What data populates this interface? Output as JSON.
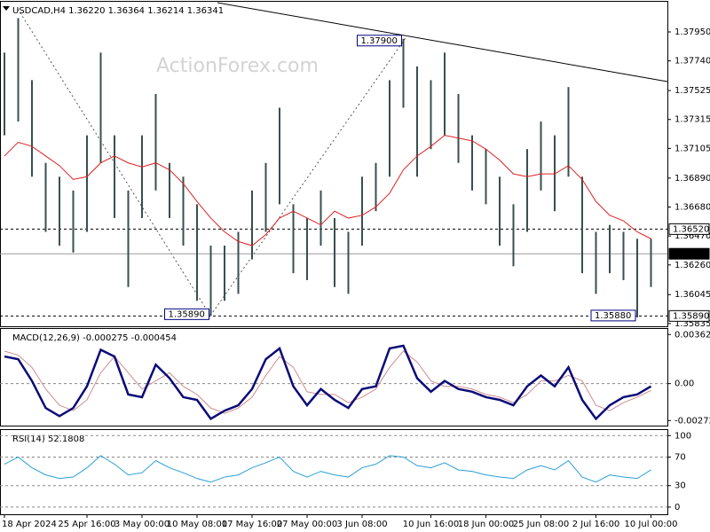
{
  "watermark": "ActionForex.com",
  "chart_data": [
    {
      "type": "ohlc",
      "title": "USDCAD,H4 1.36220 1.36364 1.36214 1.36341",
      "color": "#37504f",
      "categories": [
        "18 Apr 2024",
        null,
        null,
        null,
        null,
        null,
        "25 Apr 16:00",
        null,
        null,
        null,
        "3 May 00:00",
        null,
        null,
        null,
        "10 May 08:00",
        null,
        null,
        null,
        "17 May 16:00",
        null,
        null,
        null,
        "27 May 00:00",
        null,
        null,
        null,
        "3 Jun 08:00",
        null,
        null,
        null,
        null,
        "10 Jun 16:00",
        null,
        null,
        null,
        "18 Jun 00:00",
        null,
        null,
        null,
        "25 Jun 08:00",
        null,
        null,
        null,
        "2 Jul 16:00",
        null,
        null,
        null,
        "10 Jul 00:00"
      ],
      "high": [
        1.378,
        1.3805,
        1.376,
        1.37,
        1.369,
        1.368,
        1.372,
        1.378,
        1.372,
        1.368,
        1.372,
        1.375,
        1.37,
        1.369,
        1.367,
        1.364,
        1.364,
        1.365,
        1.368,
        1.37,
        1.374,
        1.367,
        1.366,
        1.368,
        1.366,
        1.365,
        1.369,
        1.37,
        1.376,
        1.379,
        1.377,
        1.376,
        1.378,
        1.375,
        1.372,
        1.371,
        1.369,
        1.367,
        1.371,
        1.373,
        1.372,
        1.3755,
        1.369,
        1.365,
        1.3655,
        1.365,
        1.3645,
        1.3645
      ],
      "low": [
        1.372,
        1.373,
        1.369,
        1.365,
        1.364,
        1.3635,
        1.365,
        1.37,
        1.366,
        1.361,
        1.366,
        1.368,
        1.366,
        1.364,
        1.36,
        1.3589,
        1.36,
        1.3605,
        1.363,
        1.365,
        1.367,
        1.362,
        1.3615,
        1.364,
        1.361,
        1.3605,
        1.364,
        1.3665,
        1.369,
        1.374,
        1.369,
        1.371,
        1.372,
        1.37,
        1.368,
        1.367,
        1.364,
        1.3625,
        1.365,
        1.368,
        1.3665,
        1.369,
        1.362,
        1.3605,
        1.362,
        1.3615,
        1.3588,
        1.361
      ],
      "ma": {
        "color": "#e02020",
        "values": [
          1.3705,
          1.3715,
          1.3712,
          1.3705,
          1.3698,
          1.3688,
          1.369,
          1.37,
          1.3705,
          1.37,
          1.3697,
          1.37,
          1.3695,
          1.3685,
          1.3672,
          1.366,
          1.365,
          1.3643,
          1.364,
          1.3648,
          1.366,
          1.3665,
          1.366,
          1.3655,
          1.3665,
          1.366,
          1.3662,
          1.3668,
          1.3678,
          1.3695,
          1.3705,
          1.3712,
          1.372,
          1.3718,
          1.3716,
          1.371,
          1.3702,
          1.3692,
          1.369,
          1.3692,
          1.3692,
          1.3698,
          1.3688,
          1.3672,
          1.3662,
          1.3658,
          1.365,
          1.3645
        ]
      },
      "ylim": [
        1.35815,
        1.38175
      ],
      "yticks": [
        {
          "value": 1.3795,
          "label": "1.37950"
        },
        {
          "value": 1.3774,
          "label": "1.37740"
        },
        {
          "value": 1.37525,
          "label": "1.37525"
        },
        {
          "value": 1.37315,
          "label": "1.37315"
        },
        {
          "value": 1.37105,
          "label": "1.37105"
        },
        {
          "value": 1.3689,
          "label": "1.36890"
        },
        {
          "value": 1.3668,
          "label": "1.36680"
        },
        {
          "value": 1.3647,
          "label": "1.36470"
        },
        {
          "value": 1.3626,
          "label": "1.36260"
        },
        {
          "value": 1.36045,
          "label": "1.36045"
        },
        {
          "value": 1.35835,
          "label": "1.35835"
        }
      ],
      "levels": [
        {
          "value": 1.3652,
          "label": "1.36520",
          "style": "dashed"
        },
        {
          "value": 1.36341,
          "label": "1.36341",
          "style": "solid"
        },
        {
          "value": 1.3589,
          "label": "1.35890",
          "style": "dashed"
        }
      ],
      "annotations": [
        {
          "value": 1.379,
          "label": "1.37900"
        },
        {
          "value": 1.3589,
          "label": "1.35890"
        },
        {
          "value": 1.3588,
          "label": "1.35880"
        }
      ]
    },
    {
      "type": "macd",
      "title": "MACD(12,26,9) -0.000275 -0.000454",
      "series": [
        {
          "color": "#0a0a78",
          "values": [
            0.002,
            0.0018,
            0.0002,
            -0.0018,
            -0.0024,
            -0.0018,
            -0.0002,
            0.0025,
            0.002,
            -0.0008,
            -0.001,
            0.0014,
            0.0004,
            -0.001,
            -0.0012,
            -0.0026,
            -0.002,
            -0.0016,
            -0.0004,
            0.0018,
            0.0026,
            -0.0002,
            -0.0016,
            -0.0004,
            -0.0012,
            -0.0018,
            -0.0004,
            -0.0002,
            0.0026,
            0.0028,
            0.0004,
            -0.0006,
            0.0002,
            -0.0004,
            -0.0006,
            -0.001,
            -0.0012,
            -0.0016,
            -0.0002,
            0.0006,
            -0.0002,
            0.0012,
            -0.0012,
            -0.0026,
            -0.0016,
            -0.001,
            -0.0008,
            -0.0002
          ]
        },
        {
          "color": "#d08c8c",
          "values": [
            0.0024,
            0.0021,
            0.0012,
            -0.0004,
            -0.0016,
            -0.002,
            -0.0012,
            0.0008,
            0.002,
            0.0008,
            -0.0004,
            0.0002,
            0.0008,
            -0.0002,
            -0.0008,
            -0.0018,
            -0.0022,
            -0.0018,
            -0.001,
            0.0006,
            0.002,
            0.0012,
            -0.0006,
            -0.0008,
            -0.0008,
            -0.0014,
            -0.001,
            -0.0004,
            0.0012,
            0.0024,
            0.0016,
            0.0002,
            -0.0002,
            -0.0002,
            -0.0004,
            -0.0008,
            -0.001,
            -0.0014,
            -0.0008,
            0.0002,
            0.0002,
            0.0006,
            0.0002,
            -0.0016,
            -0.002,
            -0.0014,
            -0.001,
            -0.0005
          ]
        }
      ],
      "ylim": [
        -0.0031,
        0.0041
      ],
      "yticks": [
        0.003625,
        {
          "value": 0,
          "label": "0.00"
        },
        -0.002728
      ]
    },
    {
      "type": "line",
      "title": "RSI(14) 52.1808",
      "color": "#2a9fd8",
      "values": [
        60,
        70,
        55,
        45,
        40,
        42,
        55,
        72,
        60,
        45,
        48,
        65,
        55,
        48,
        40,
        35,
        42,
        45,
        55,
        62,
        70,
        50,
        42,
        50,
        45,
        42,
        55,
        60,
        72,
        70,
        58,
        55,
        62,
        52,
        50,
        45,
        42,
        40,
        52,
        58,
        52,
        65,
        42,
        35,
        45,
        42,
        40,
        52
      ],
      "ylim": [
        -10,
        109
      ],
      "yticks": [
        100,
        70,
        30,
        0
      ],
      "grid": "dashed"
    }
  ]
}
